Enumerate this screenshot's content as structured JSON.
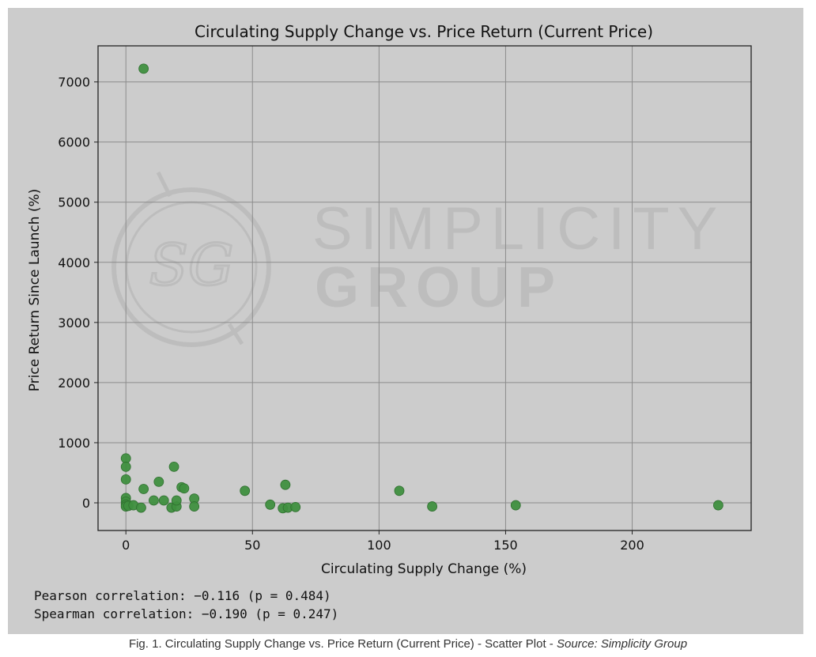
{
  "chart_data": {
    "type": "scatter",
    "title": "Circulating Supply Change vs. Price Return (Current Price)",
    "xlabel": "Circulating Supply Change (%)",
    "ylabel": "Price Return Since Launch (%)",
    "xlim": [
      -11,
      247
    ],
    "ylim": [
      -460,
      7600
    ],
    "xticks": [
      0,
      50,
      100,
      150,
      200
    ],
    "yticks": [
      0,
      1000,
      2000,
      3000,
      4000,
      5000,
      6000,
      7000
    ],
    "grid": true,
    "marker_color": "#3f8f3f",
    "points": [
      {
        "x": 7,
        "y": 7220
      },
      {
        "x": 0,
        "y": 740
      },
      {
        "x": 0,
        "y": 600
      },
      {
        "x": 0,
        "y": 390
      },
      {
        "x": 0,
        "y": 80
      },
      {
        "x": 0,
        "y": 20
      },
      {
        "x": 0,
        "y": -30
      },
      {
        "x": 0,
        "y": -60
      },
      {
        "x": 1,
        "y": -50
      },
      {
        "x": 3,
        "y": -40
      },
      {
        "x": 6,
        "y": -80
      },
      {
        "x": 7,
        "y": 230
      },
      {
        "x": 11,
        "y": 40
      },
      {
        "x": 13,
        "y": 350
      },
      {
        "x": 15,
        "y": 40
      },
      {
        "x": 18,
        "y": -80
      },
      {
        "x": 19,
        "y": 600
      },
      {
        "x": 20,
        "y": -60
      },
      {
        "x": 20,
        "y": 40
      },
      {
        "x": 22,
        "y": 260
      },
      {
        "x": 23,
        "y": 240
      },
      {
        "x": 27,
        "y": 70
      },
      {
        "x": 27,
        "y": -60
      },
      {
        "x": 47,
        "y": 200
      },
      {
        "x": 57,
        "y": -30
      },
      {
        "x": 63,
        "y": 300
      },
      {
        "x": 62,
        "y": -90
      },
      {
        "x": 64,
        "y": -80
      },
      {
        "x": 67,
        "y": -70
      },
      {
        "x": 108,
        "y": 200
      },
      {
        "x": 121,
        "y": -60
      },
      {
        "x": 154,
        "y": -40
      },
      {
        "x": 234,
        "y": -40
      }
    ]
  },
  "watermark": {
    "line1": "SIMPLICITY",
    "line2": "GROUP"
  },
  "stats": {
    "pearson": "Pearson correlation: −0.116 (p = 0.484)",
    "spearman": "Spearman correlation: −0.190 (p = 0.247)"
  },
  "caption": {
    "main": "Fig. 1. Circulating Supply Change vs. Price Return (Current Price) - Scatter Plot - ",
    "source": "Source: Simplicity Group"
  }
}
